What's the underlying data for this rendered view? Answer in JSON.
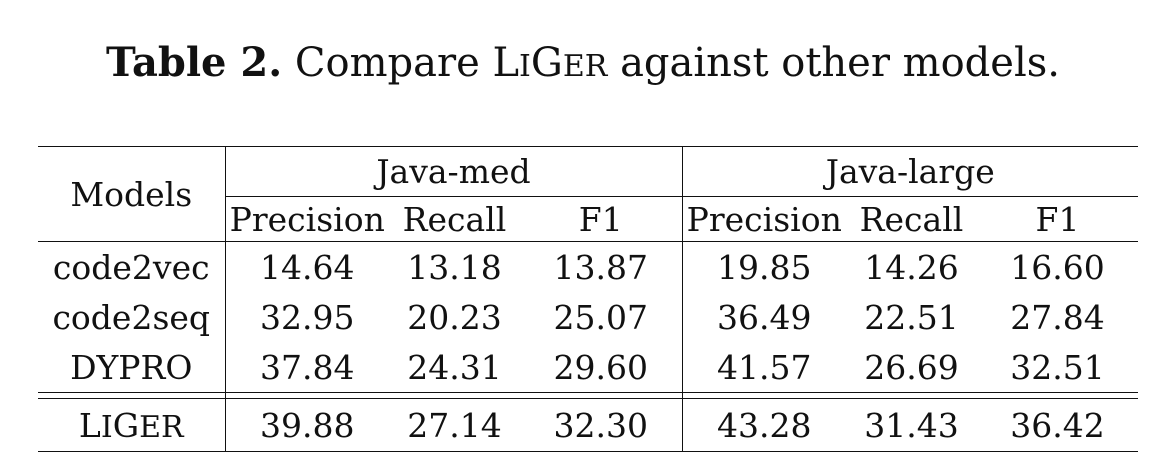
{
  "caption": {
    "label": "Table 2.",
    "text_before": "Compare",
    "model_name": "LiGer",
    "text_after": "against other models."
  },
  "table": {
    "model_header": "Models",
    "groups": [
      "Java-med",
      "Java-large"
    ],
    "metrics": [
      "Precision",
      "Recall",
      "F1"
    ],
    "rows": [
      {
        "model": "code2vec",
        "values": [
          "14.64",
          "13.18",
          "13.87",
          "19.85",
          "14.26",
          "16.60"
        ]
      },
      {
        "model": "code2seq",
        "values": [
          "32.95",
          "20.23",
          "25.07",
          "36.49",
          "22.51",
          "27.84"
        ]
      },
      {
        "model": "DYPRO",
        "values": [
          "37.84",
          "24.31",
          "29.60",
          "41.57",
          "26.69",
          "32.51"
        ]
      }
    ],
    "ours": {
      "model": "LiGer",
      "values": [
        "39.88",
        "27.14",
        "32.30",
        "43.28",
        "31.43",
        "36.42"
      ]
    }
  }
}
